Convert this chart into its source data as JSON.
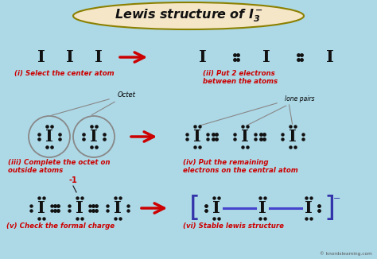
{
  "bg_color": "#add8e6",
  "title_text": "Lewis structure of $\\mathit{I_3^-}$",
  "title_bg": "#f5e6c8",
  "title_border": "#8B8000",
  "red": "#cc0000",
  "black": "#111111",
  "gray": "#888888",
  "blue": "#4444cc",
  "bracket_blue": "#3333aa",
  "step_labels": [
    "(i) Select the center atom",
    "(ii) Put 2 electrons\nbetween the atoms",
    "(iii) Complete the octet on\noutside atoms",
    "(iv) Put the remaining\nelectrons on the central atom",
    "(v) Check the formal charge",
    "(vi) Stable lewis structure"
  ],
  "watermark": "© knordslearning.com"
}
